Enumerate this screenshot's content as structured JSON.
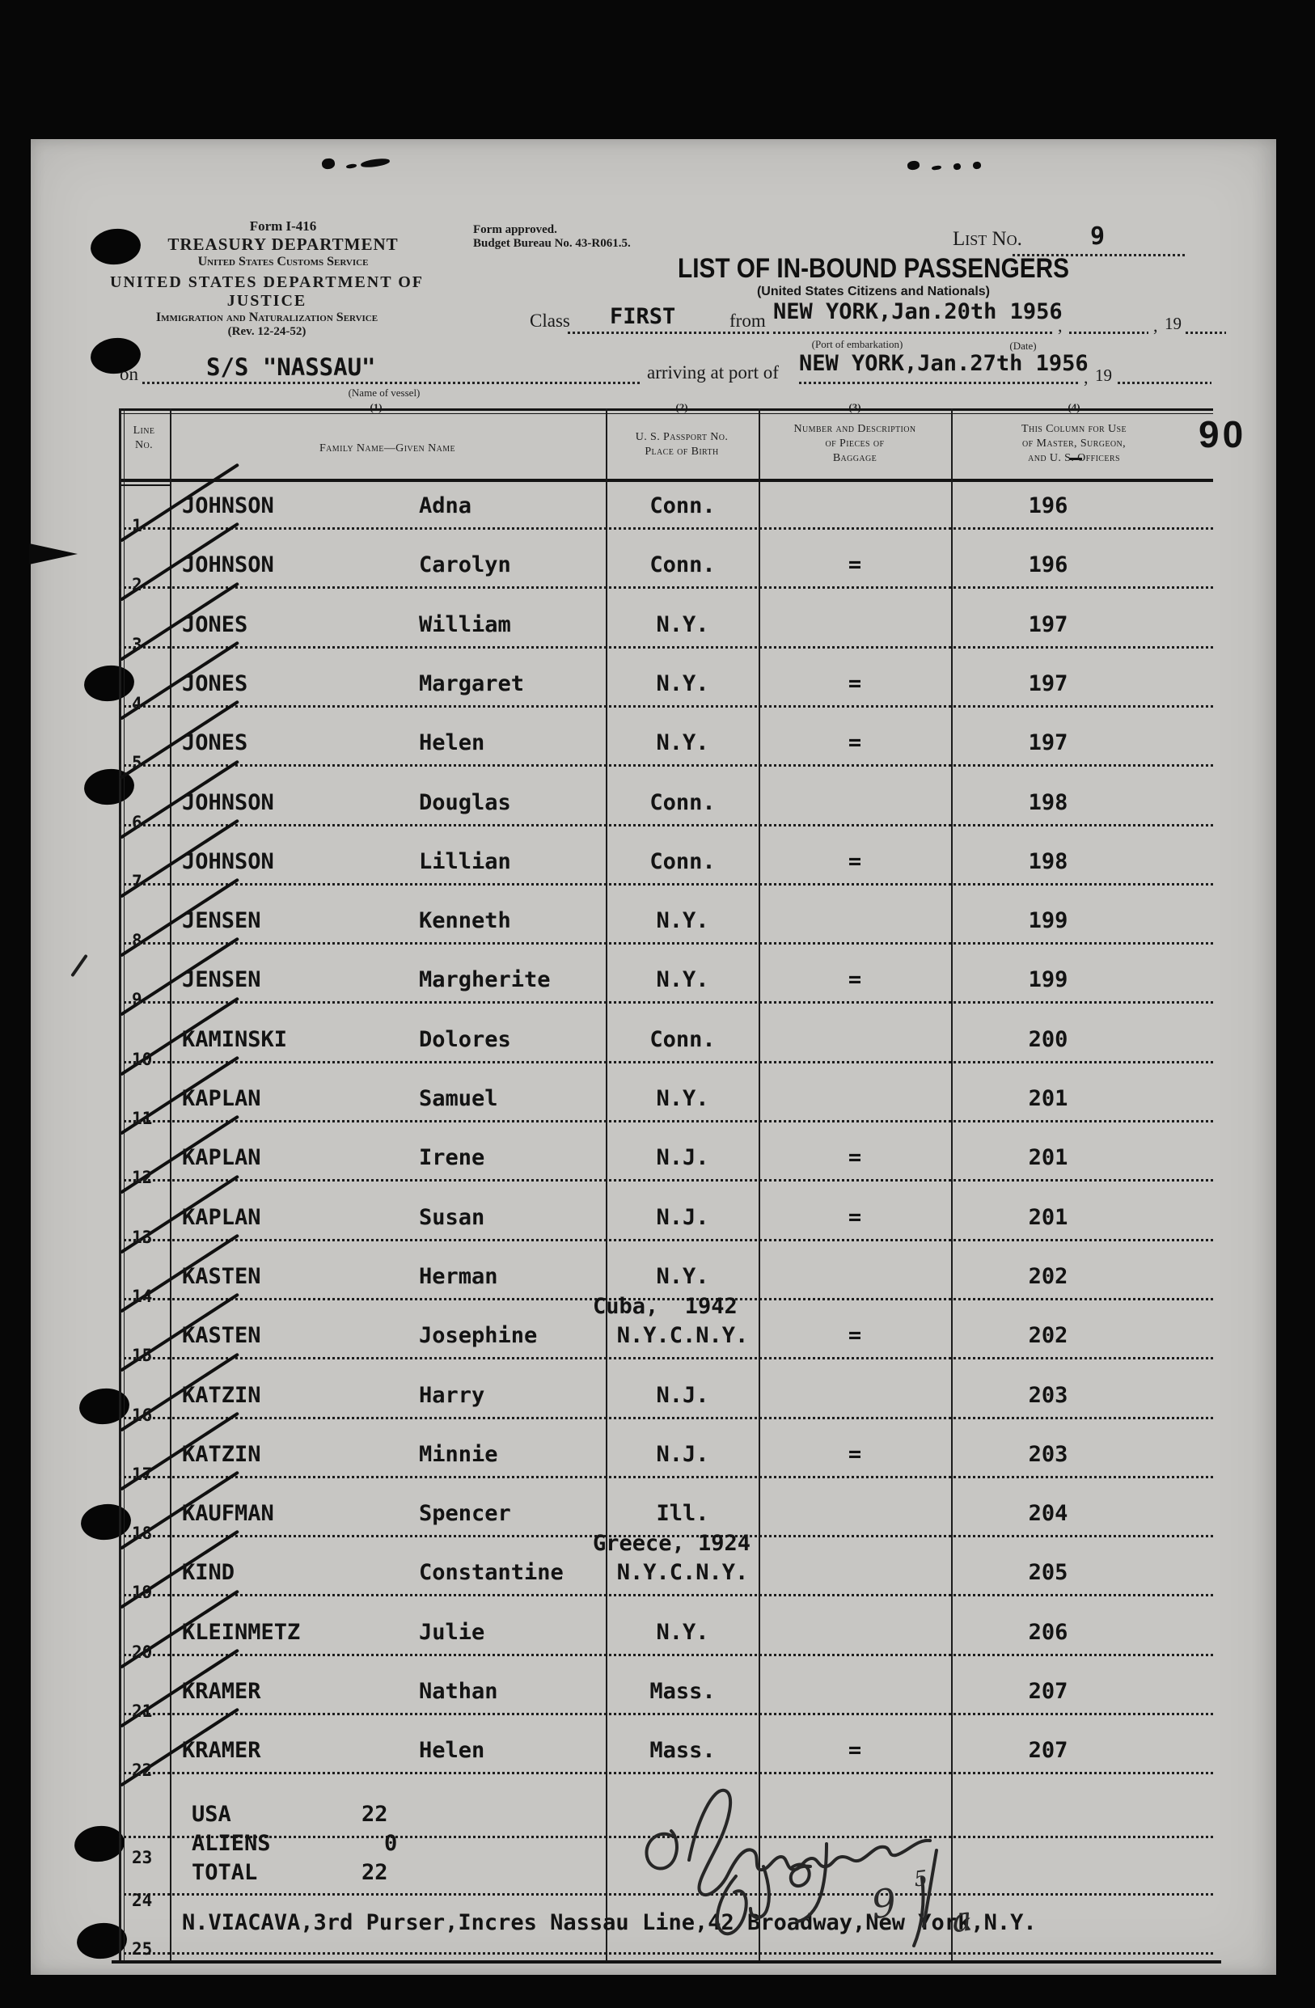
{
  "header": {
    "form_number": "Form I-416",
    "treasury": "TREASURY DEPARTMENT",
    "customs": "United States Customs Service",
    "justice": "UNITED STATES DEPARTMENT OF JUSTICE",
    "ins": "Immigration and Naturalization Service",
    "revision": "(Rev. 12-24-52)",
    "approved1": "Form approved.",
    "approved2": "Budget Bureau No. 43-R061.5.",
    "list_no_label": "List No.",
    "list_no": "9",
    "title": "LIST OF IN-BOUND PASSENGERS",
    "subtitle": "(United States Citizens and Nationals)",
    "class_label": "Class",
    "class_value": "FIRST",
    "from_label": "from",
    "embark_value": "NEW YORK,Jan.20th 1956",
    "comma": ",",
    "year_prefix": "19",
    "port_caption": "(Port of embarkation)",
    "date_caption": "(Date)",
    "on_label": "on",
    "vessel_value": "S/S \"NASSAU\"",
    "vessel_caption": "(Name of vessel)",
    "arrive_label": "arriving at port of",
    "arrive_value": "NEW YORK,Jan.27th 1956",
    "col_refs": [
      "(1)",
      "(2)",
      "(3)",
      "(4)"
    ],
    "page_number": "90"
  },
  "table": {
    "headers": {
      "line1": "Line",
      "line2": "No.",
      "family": "Family Name—Given Name",
      "passport1": "U. S. Passport No.",
      "passport2": "Place of Birth",
      "baggage1": "Number and Description",
      "baggage2": "of Pieces of",
      "baggage3": "Baggage",
      "officers1": "This Column for Use",
      "officers2": "of Master, Surgeon,",
      "officers3": "and U. S. Officers"
    },
    "rows": [
      {
        "no": "1",
        "family": "JOHNSON",
        "given": "Adna",
        "birth": "Conn.",
        "baggage": "",
        "officer": "196",
        "checked": true
      },
      {
        "no": "2",
        "family": "JOHNSON",
        "given": "Carolyn",
        "birth": "Conn.",
        "baggage": "=",
        "officer": "196",
        "checked": true
      },
      {
        "no": "3",
        "family": "JONES",
        "given": "William",
        "birth": "N.Y.",
        "baggage": "",
        "officer": "197",
        "checked": true
      },
      {
        "no": "4",
        "family": "JONES",
        "given": "Margaret",
        "birth": "N.Y.",
        "baggage": "=",
        "officer": "197",
        "checked": true
      },
      {
        "no": "5",
        "family": "JONES",
        "given": "Helen",
        "birth": "N.Y.",
        "baggage": "=",
        "officer": "197",
        "checked": true
      },
      {
        "no": "6",
        "family": "JOHNSON",
        "given": "Douglas",
        "birth": "Conn.",
        "baggage": "",
        "officer": "198",
        "checked": true
      },
      {
        "no": "7",
        "family": "JOHNSON",
        "given": "Lillian",
        "birth": "Conn.",
        "baggage": "=",
        "officer": "198",
        "checked": true
      },
      {
        "no": "8",
        "family": "JENSEN",
        "given": "Kenneth",
        "birth": "N.Y.",
        "baggage": "",
        "officer": "199",
        "checked": true
      },
      {
        "no": "9",
        "family": "JENSEN",
        "given": "Margherite",
        "birth": "N.Y.",
        "baggage": "=",
        "officer": "199",
        "checked": true
      },
      {
        "no": "10",
        "family": "KAMINSKI",
        "given": "Dolores",
        "birth": "Conn.",
        "baggage": "",
        "officer": "200",
        "checked": true
      },
      {
        "no": "11",
        "family": "KAPLAN",
        "given": "Samuel",
        "birth": "N.Y.",
        "baggage": "",
        "officer": "201",
        "checked": true
      },
      {
        "no": "12",
        "family": "KAPLAN",
        "given": "Irene",
        "birth": "N.J.",
        "baggage": "=",
        "officer": "201",
        "checked": true
      },
      {
        "no": "13",
        "family": "KAPLAN",
        "given": "Susan",
        "birth": "N.J.",
        "baggage": "=",
        "officer": "201",
        "checked": true
      },
      {
        "no": "14",
        "family": "KASTEN",
        "given": "Herman",
        "birth": "N.Y.",
        "baggage": "",
        "officer": "202",
        "checked": true
      },
      {
        "no": "15",
        "family": "KASTEN",
        "given": "Josephine",
        "birth_note": "Cuba,  1942",
        "birth": "N.Y.C.N.Y.",
        "baggage": "=",
        "officer": "202",
        "checked": true
      },
      {
        "no": "16",
        "family": "KATZIN",
        "given": "Harry",
        "birth": "N.J.",
        "baggage": "",
        "officer": "203",
        "checked": true
      },
      {
        "no": "17",
        "family": "KATZIN",
        "given": "Minnie",
        "birth": "N.J.",
        "baggage": "=",
        "officer": "203",
        "checked": true
      },
      {
        "no": "18",
        "family": "KAUFMAN",
        "given": "Spencer",
        "birth": "Ill.",
        "baggage": "",
        "officer": "204",
        "checked": true
      },
      {
        "no": "19",
        "family": "KIND",
        "given": "Constantine",
        "birth_note": "Greece, 1924",
        "birth": "N.Y.C.N.Y.",
        "baggage": "",
        "officer": "205",
        "checked": true
      },
      {
        "no": "20",
        "family": "KLEINMETZ",
        "given": "Julie",
        "birth": "N.Y.",
        "baggage": "",
        "officer": "206",
        "checked": true
      },
      {
        "no": "21",
        "family": "KRAMER",
        "given": "Nathan",
        "birth": "Mass.",
        "baggage": "",
        "officer": "207",
        "checked": true
      },
      {
        "no": "22",
        "family": "KRAMER",
        "given": "Helen",
        "birth": "Mass.",
        "baggage": "=",
        "officer": "207",
        "checked": true
      }
    ],
    "extra_line_numbers": [
      "23",
      "24",
      "25"
    ]
  },
  "totals": {
    "us_label": "USA",
    "us_value": "22",
    "aliens_label": "ALIENS",
    "aliens_value": "0",
    "total_label": "TOTAL",
    "total_value": "22"
  },
  "footer": {
    "purser_line": "N.VIACAVA,3rd Purser,Incres Nassau Line,42 Broadway,New York,N.Y."
  },
  "handwriting": {
    "digit": "9",
    "sup": "5",
    "letter": "a"
  }
}
